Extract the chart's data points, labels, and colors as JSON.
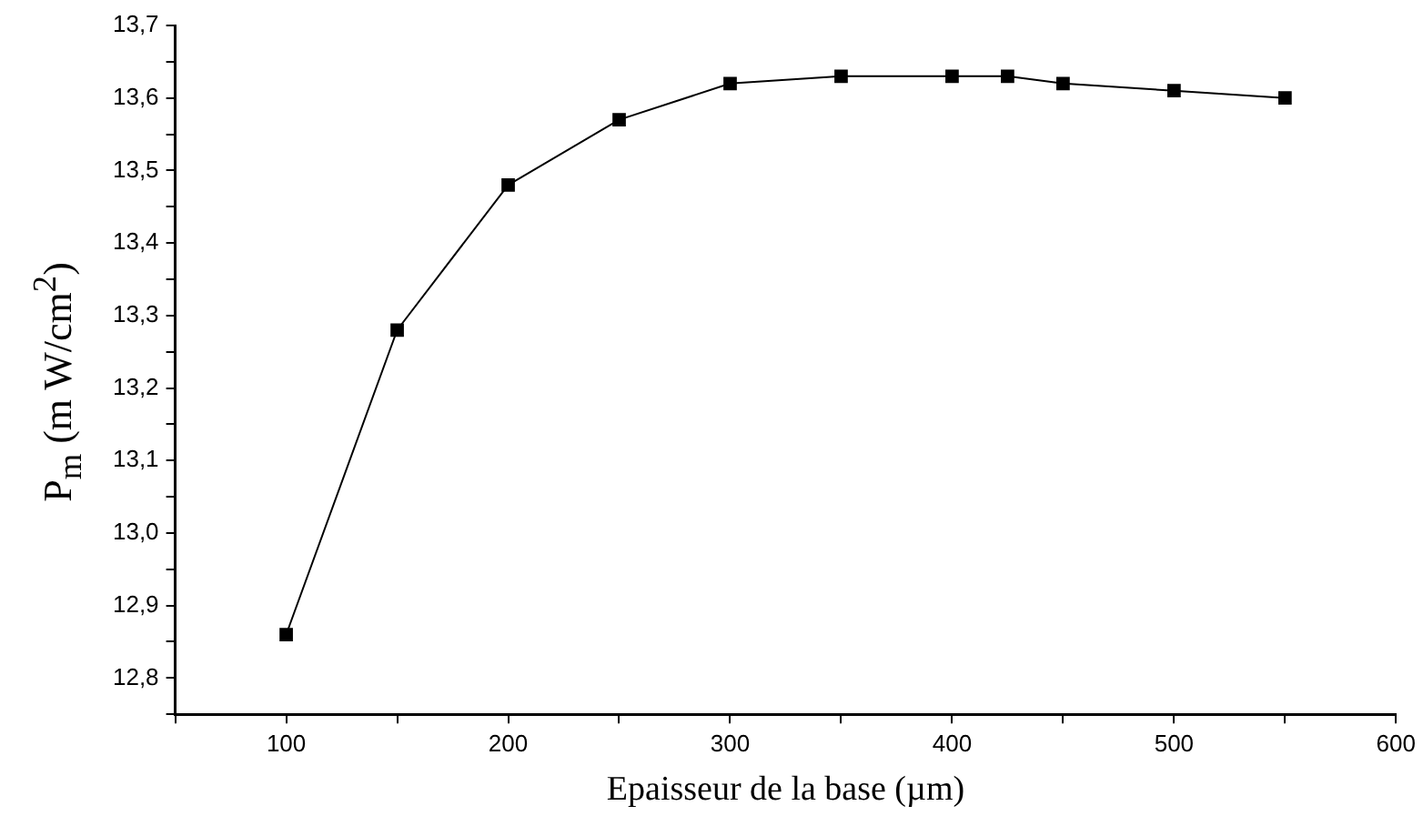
{
  "chart_data": {
    "type": "line",
    "xlabel": "Epaisseur de la base (µm)",
    "ylabel": "P$_{m}$  (m W/cm$^{2}$)",
    "x": [
      100,
      150,
      200,
      250,
      300,
      350,
      400,
      425,
      450,
      500,
      550
    ],
    "series": [
      {
        "color": "#000000",
        "values": [
          12.86,
          13.28,
          13.48,
          13.57,
          13.62,
          13.63,
          13.63,
          13.63,
          13.62,
          13.61,
          13.6
        ]
      }
    ],
    "xlim": [
      50,
      600
    ],
    "xticks": [
      {
        "value": 50,
        "label": null
      },
      100,
      {
        "value": 150,
        "label": null
      },
      200,
      {
        "value": 250,
        "label": null
      },
      300,
      {
        "value": 350,
        "label": null
      },
      400,
      {
        "value": 450,
        "label": null
      },
      500,
      {
        "value": 550,
        "label": null
      },
      600
    ],
    "ylim": [
      12.75,
      13.7
    ],
    "yticks": [
      {
        "value": 12.75,
        "label": null
      },
      {
        "value": 12.8,
        "label": "12,8"
      },
      {
        "value": 12.85,
        "label": null
      },
      {
        "value": 12.9,
        "label": "12,9"
      },
      {
        "value": 12.95,
        "label": null
      },
      {
        "value": 13.0,
        "label": "13,0"
      },
      {
        "value": 13.05,
        "label": null
      },
      {
        "value": 13.1,
        "label": "13,1"
      },
      {
        "value": 13.15,
        "label": null
      },
      {
        "value": 13.2,
        "label": "13,2"
      },
      {
        "value": 13.25,
        "label": null
      },
      {
        "value": 13.3,
        "label": "13,3"
      },
      {
        "value": 13.35,
        "label": null
      },
      {
        "value": 13.4,
        "label": "13,4"
      },
      {
        "value": 13.45,
        "label": null
      },
      {
        "value": 13.5,
        "label": "13,5"
      },
      {
        "value": 13.55,
        "label": null
      },
      {
        "value": 13.6,
        "label": "13,6"
      },
      {
        "value": 13.65,
        "label": null
      },
      {
        "value": 13.7,
        "label": "13,7"
      }
    ],
    "grid": false,
    "legend": false,
    "marker": "square",
    "line_style": "solid"
  }
}
